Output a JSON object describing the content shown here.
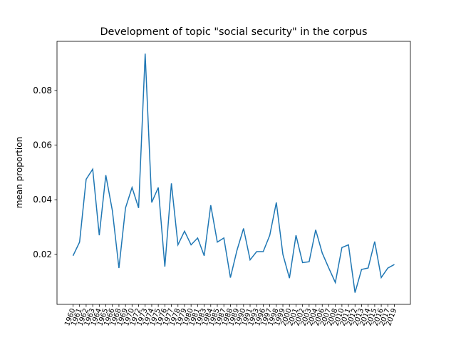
{
  "chart_data": {
    "type": "line",
    "title": "Development of topic \"social security\" in the corpus",
    "ylabel": "mean proportion",
    "categories": [
      "1960",
      "1961",
      "1962",
      "1963",
      "1964",
      "1965",
      "1966",
      "1968",
      "1969",
      "1970",
      "1972",
      "1973",
      "1974",
      "1975",
      "1976",
      "1977",
      "1978",
      "1979",
      "1980",
      "1981",
      "1983",
      "1984",
      "1985",
      "1987",
      "1988",
      "1989",
      "1990",
      "1991",
      "1993",
      "1996",
      "1997",
      "1998",
      "1999",
      "2000",
      "2001",
      "2002",
      "2003",
      "2004",
      "2006",
      "2007",
      "2008",
      "2010",
      "2011",
      "2012",
      "2013",
      "2014",
      "2015",
      "2016",
      "2017",
      "2019"
    ],
    "series": [
      {
        "name": "social security",
        "color": "#1f77b4",
        "values": [
          0.0195,
          0.0245,
          0.0475,
          0.0512,
          0.027,
          0.049,
          0.036,
          0.015,
          0.037,
          0.0445,
          0.037,
          0.0935,
          0.039,
          0.0445,
          0.0155,
          0.046,
          0.0235,
          0.0285,
          0.0235,
          0.026,
          0.0195,
          0.038,
          0.0245,
          0.026,
          0.0115,
          0.0215,
          0.0295,
          0.018,
          0.021,
          0.021,
          0.027,
          0.039,
          0.02,
          0.0113,
          0.027,
          0.017,
          0.0173,
          0.029,
          0.0205,
          0.015,
          0.0097,
          0.0225,
          0.0235,
          0.006,
          0.0145,
          0.015,
          0.0247,
          0.0115,
          0.015,
          0.0163
        ]
      }
    ],
    "ylim": [
      0.0017,
      0.098
    ],
    "yticks": [
      0.02,
      0.04,
      0.06,
      0.08
    ]
  }
}
